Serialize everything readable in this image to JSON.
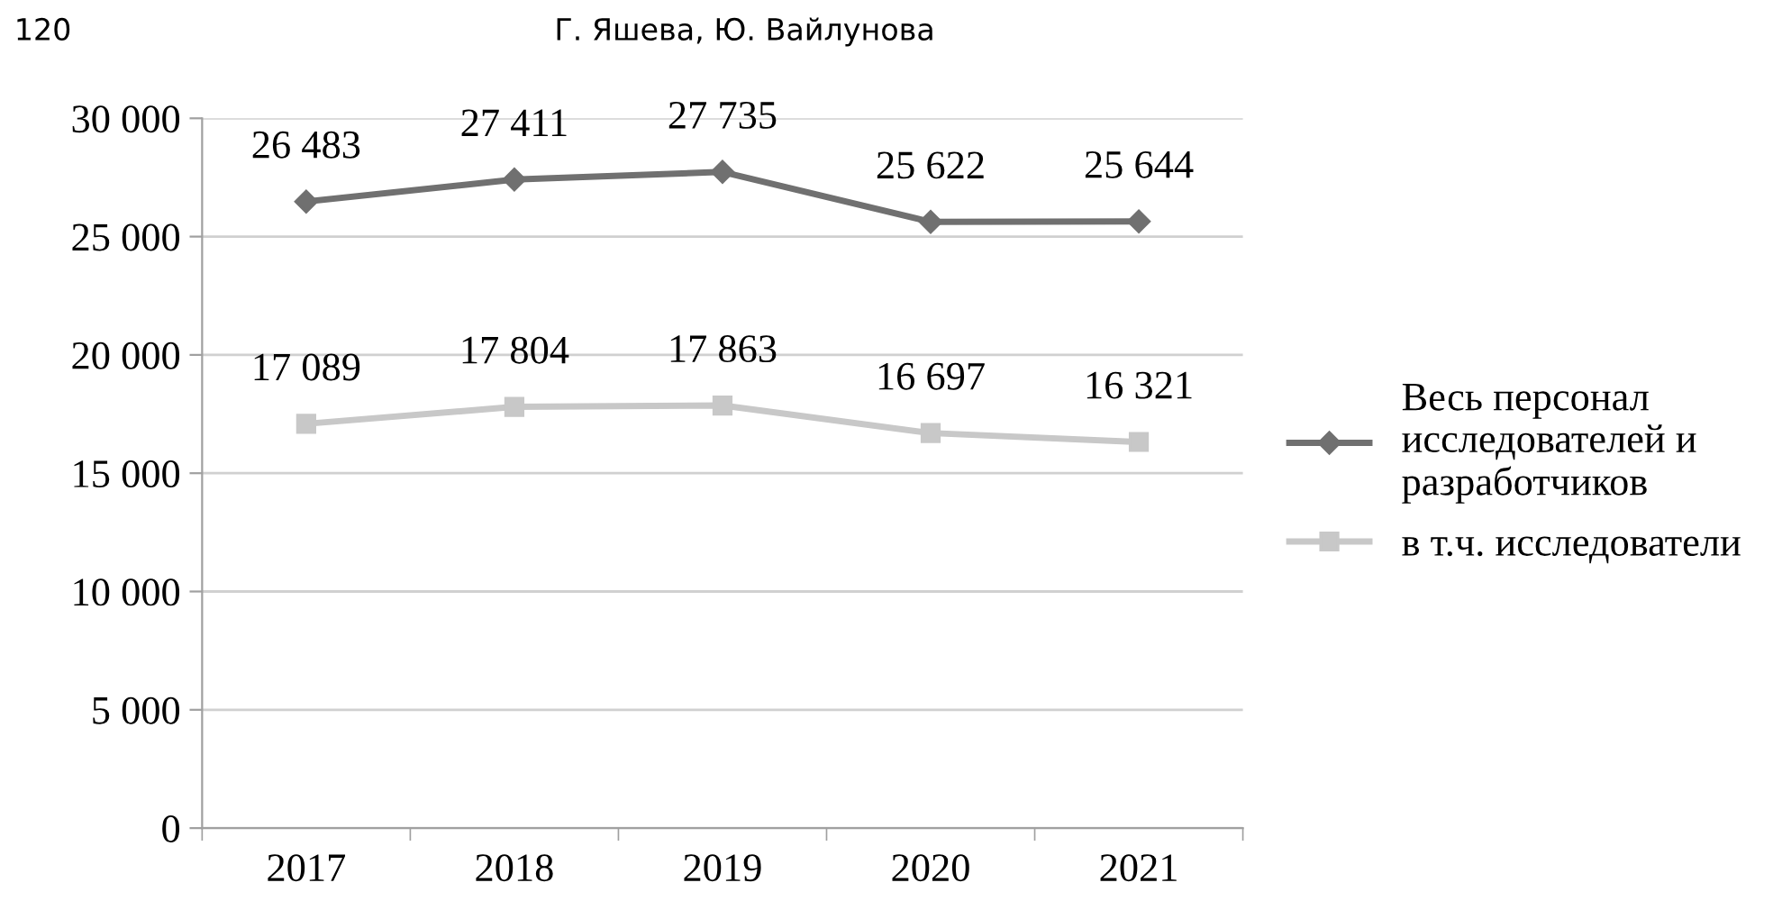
{
  "chart_data": {
    "type": "line",
    "categories": [
      "2017",
      "2018",
      "2019",
      "2020",
      "2021"
    ],
    "series": [
      {
        "name": "Весь персонал\nисследователей и\nразработчиков",
        "color": "#707070",
        "marker": "diamond",
        "values": [
          26483,
          27411,
          27735,
          25622,
          25644
        ],
        "value_labels": [
          "26 483",
          "27 411",
          "27 735",
          "25 622",
          "25 644"
        ]
      },
      {
        "name": "в т.ч. исследователи",
        "color": "#c8c8c8",
        "marker": "square",
        "values": [
          17089,
          17804,
          17863,
          16697,
          16321
        ],
        "value_labels": [
          "17 089",
          "17 804",
          "17 863",
          "16 697",
          "16 321"
        ]
      }
    ],
    "ylim": [
      0,
      30000
    ],
    "yticks": [
      0,
      {
        "value": 5000,
        "label": "5 000"
      },
      {
        "value": 10000,
        "label": "10 000"
      },
      {
        "value": 15000,
        "label": "15 000"
      },
      {
        "value": 20000,
        "label": "20 000"
      },
      {
        "value": 25000,
        "label": "25 000"
      },
      {
        "value": 30000,
        "label": "30 000"
      }
    ],
    "grid": "y",
    "legend": "right",
    "line_style": "solid",
    "annotations": [
      "120",
      "Г. Яшева, Ю. Вайлунова"
    ]
  }
}
